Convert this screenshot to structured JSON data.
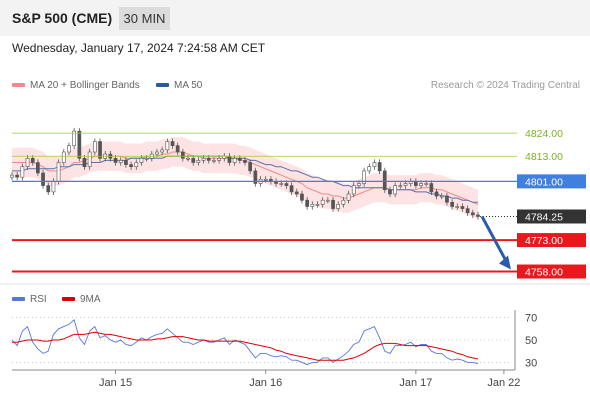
{
  "header": {
    "title": "S&P 500 (CME)",
    "timeframe": "30 MIN"
  },
  "datetime": "Wednesday, January 17, 2024 7:24:58 AM CET",
  "legend": {
    "items": [
      {
        "label": "MA 20 + Bollinger Bands",
        "color": "#f08a8a"
      },
      {
        "label": "MA 50",
        "color": "#2b5aa0"
      }
    ],
    "credit": "Research © 2024 Trading Central"
  },
  "rsi_legend": {
    "items": [
      {
        "label": "RSI",
        "color": "#5577dd"
      },
      {
        "label": "9MA",
        "color": "#dd0000"
      }
    ]
  },
  "chart_data": {
    "type": "line",
    "price": {
      "ylim": [
        4753,
        4836
      ],
      "levels": [
        {
          "label": "4824.00",
          "value": 4824,
          "color": "#9acd32",
          "kind": "resistance"
        },
        {
          "label": "4813.00",
          "value": 4813,
          "color": "#9acd32",
          "kind": "resistance"
        },
        {
          "label": "4801.00",
          "value": 4801,
          "color": "#3f7fe0",
          "kind": "pivot"
        },
        {
          "label": "4784.25",
          "value": 4784.25,
          "color": "#333333",
          "kind": "last"
        },
        {
          "label": "4773.00",
          "value": 4773,
          "color": "#e8191c",
          "kind": "support"
        },
        {
          "label": "4758.00",
          "value": 4758,
          "color": "#e8191c",
          "kind": "support"
        }
      ],
      "close": [
        4804,
        4803,
        4808,
        4812,
        4810,
        4805,
        4799,
        4796,
        4801,
        4810,
        4815,
        4818,
        4825,
        4812,
        4808,
        4815,
        4820,
        4812,
        4814,
        4812,
        4810,
        4811,
        4809,
        4808,
        4810,
        4812,
        4812,
        4814,
        4815,
        4816,
        4820,
        4818,
        4815,
        4812,
        4812,
        4810,
        4811,
        4812,
        4811,
        4811,
        4812,
        4813,
        4810,
        4812,
        4811,
        4810,
        4806,
        4800,
        4802,
        4802,
        4801,
        4800,
        4800,
        4799,
        4796,
        4795,
        4792,
        4789,
        4790,
        4790,
        4792,
        4792,
        4788,
        4790,
        4792,
        4795,
        4799,
        4800,
        4806,
        4808,
        4810,
        4806,
        4797,
        4795,
        4799,
        4799,
        4800,
        4801,
        4799,
        4800,
        4800,
        4796,
        4794,
        4794,
        4791,
        4789,
        4789,
        4788,
        4786,
        4785,
        4784.25
      ],
      "ma20": [
        4810,
        4810,
        4810,
        4810,
        4810,
        4809,
        4808,
        4806,
        4806,
        4806,
        4807,
        4808,
        4810,
        4810,
        4811,
        4812,
        4813,
        4813,
        4813,
        4813,
        4813,
        4813,
        4812,
        4812,
        4812,
        4812,
        4813,
        4813,
        4813,
        4814,
        4814,
        4815,
        4815,
        4815,
        4814,
        4813,
        4813,
        4812,
        4812,
        4812,
        4812,
        4812,
        4812,
        4812,
        4811,
        4811,
        4810,
        4809,
        4808,
        4807,
        4806,
        4805,
        4804,
        4803,
        4802,
        4801,
        4800,
        4798,
        4797,
        4796,
        4795,
        4795,
        4794,
        4794,
        4793,
        4793,
        4794,
        4795,
        4796,
        4797,
        4798,
        4798,
        4798,
        4797,
        4797,
        4797,
        4797,
        4797,
        4797,
        4798,
        4798,
        4798,
        4797,
        4797,
        4796,
        4795,
        4794,
        4793,
        4792,
        4791,
        4790
      ],
      "ma50": [
        4806,
        4806,
        4806,
        4807,
        4807,
        4807,
        4807,
        4807,
        4807,
        4808,
        4808,
        4808,
        4809,
        4809,
        4809,
        4810,
        4810,
        4810,
        4811,
        4811,
        4811,
        4811,
        4811,
        4812,
        4812,
        4812,
        4812,
        4812,
        4812,
        4812,
        4813,
        4813,
        4813,
        4813,
        4813,
        4813,
        4813,
        4813,
        4813,
        4813,
        4813,
        4813,
        4812,
        4812,
        4812,
        4812,
        4811,
        4811,
        4810,
        4809,
        4809,
        4808,
        4808,
        4807,
        4806,
        4806,
        4805,
        4804,
        4803,
        4803,
        4802,
        4801,
        4801,
        4800,
        4799,
        4799,
        4798,
        4798,
        4798,
        4798,
        4798,
        4798,
        4798,
        4797,
        4797,
        4797,
        4797,
        4797,
        4796,
        4796,
        4796,
        4795,
        4795,
        4794,
        4794,
        4793,
        4793,
        4792,
        4792,
        4791,
        4791
      ],
      "bb_width": 7
    },
    "rsi": {
      "ylim": [
        25,
        75
      ],
      "levels": [
        {
          "label": "70",
          "value": 70
        },
        {
          "label": "50",
          "value": 50
        },
        {
          "label": "30",
          "value": 30
        }
      ],
      "rsi": [
        50,
        45,
        58,
        62,
        48,
        42,
        38,
        40,
        55,
        60,
        62,
        64,
        68,
        52,
        46,
        58,
        62,
        52,
        54,
        50,
        48,
        50,
        46,
        45,
        48,
        52,
        50,
        53,
        55,
        56,
        60,
        56,
        52,
        48,
        48,
        46,
        48,
        50,
        48,
        48,
        50,
        52,
        46,
        50,
        48,
        46,
        40,
        34,
        38,
        38,
        36,
        35,
        36,
        35,
        32,
        32,
        30,
        28,
        30,
        30,
        34,
        34,
        30,
        33,
        36,
        40,
        46,
        48,
        58,
        60,
        62,
        52,
        40,
        38,
        45,
        45,
        46,
        48,
        44,
        46,
        46,
        40,
        38,
        38,
        34,
        32,
        33,
        32,
        30,
        30,
        29
      ],
      "ma9": [
        48,
        48,
        49,
        50,
        50,
        50,
        49,
        49,
        50,
        50,
        51,
        53,
        55,
        55,
        55,
        56,
        57,
        56,
        55,
        55,
        54,
        53,
        52,
        51,
        50,
        50,
        50,
        50,
        51,
        51,
        52,
        53,
        53,
        53,
        52,
        51,
        50,
        50,
        49,
        49,
        49,
        49,
        49,
        49,
        49,
        48,
        47,
        46,
        45,
        44,
        43,
        41,
        40,
        38,
        37,
        36,
        35,
        34,
        33,
        32,
        32,
        32,
        32,
        32,
        32,
        33,
        34,
        36,
        38,
        41,
        44,
        46,
        47,
        47,
        47,
        46,
        45,
        45,
        45,
        45,
        45,
        44,
        43,
        42,
        41,
        40,
        38,
        37,
        35,
        34,
        33
      ]
    },
    "x_axis": {
      "ticks": [
        {
          "label": "Jan 15",
          "index": 20
        },
        {
          "label": "Jan 16",
          "index": 49
        },
        {
          "label": "Jan 17",
          "index": 78
        },
        {
          "label": "Jan 22",
          "index": 95
        }
      ]
    },
    "forecast": {
      "from": 4784.25,
      "to": 4758,
      "color": "#2a5caa"
    }
  }
}
